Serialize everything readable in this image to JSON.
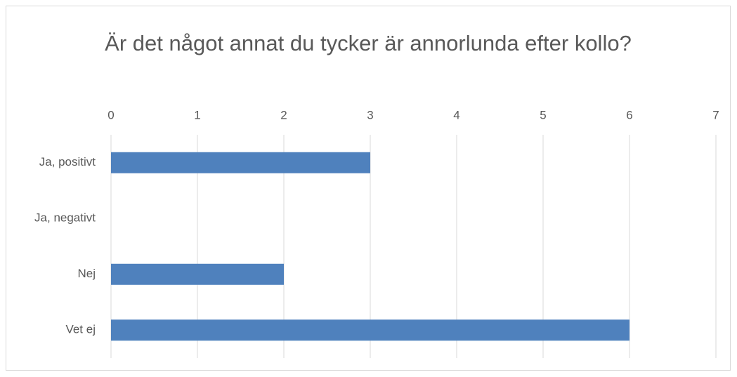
{
  "chart_data": {
    "type": "bar",
    "orientation": "horizontal",
    "title": "Är det något annat du tycker är annorlunda efter kollo?",
    "categories": [
      "Ja, positivt",
      "Ja, negativt",
      "Nej",
      "Vet ej"
    ],
    "values": [
      3,
      0,
      2,
      6
    ],
    "color": "#4f81bd",
    "xlim": [
      0,
      7
    ],
    "xticks": [
      0,
      1,
      2,
      3,
      4,
      5,
      6,
      7
    ],
    "grid": true
  }
}
